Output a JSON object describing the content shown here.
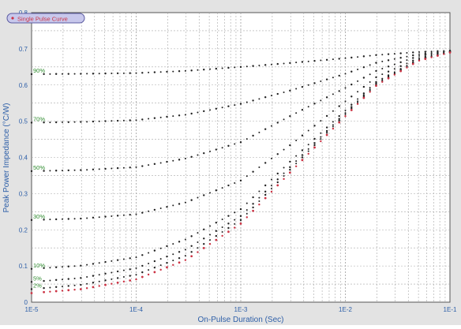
{
  "chart_data": {
    "type": "scatter",
    "title": "",
    "xlabel": "On-Pulse Duration (Sec)",
    "ylabel": "Peak Power Impedance (°C/W)",
    "x_scale": "log",
    "xlim": [
      1e-05,
      0.1
    ],
    "ylim": [
      0,
      0.8
    ],
    "x_ticks": [
      "1E-5",
      "1E-4",
      "1E-3",
      "1E-2",
      "1E-1"
    ],
    "y_ticks": [
      "0",
      "0.1",
      "0.2",
      "0.3",
      "0.4",
      "0.5",
      "0.6",
      "0.7",
      "0.8"
    ],
    "grid": true,
    "legend": {
      "position": "top-left",
      "entries": [
        {
          "label": "Single Pulse Curve",
          "color": "#cc3344",
          "marker": "dot"
        }
      ]
    },
    "colors": {
      "frame_bg": "#e3e3e3",
      "plot_bg": "#ffffff",
      "grid": "#a8a8a8",
      "axis_text": "#2e5fa8",
      "duty_label": "#2e8b2e",
      "black_marker": "#222222",
      "red_marker": "#cc3344",
      "legend_fill": "#c8c8ec",
      "legend_text": "#cc3344"
    },
    "series": [
      {
        "name": "90%",
        "color": "#222222",
        "x": [
          1e-05,
          3e-05,
          0.0001,
          0.0003,
          0.001,
          0.003,
          0.01,
          0.02,
          0.05,
          0.1
        ],
        "y": [
          0.63,
          0.631,
          0.633,
          0.639,
          0.65,
          0.661,
          0.674,
          0.683,
          0.691,
          0.695
        ]
      },
      {
        "name": "70%",
        "color": "#222222",
        "x": [
          1e-05,
          3e-05,
          0.0001,
          0.0003,
          0.001,
          0.003,
          0.01,
          0.02,
          0.05,
          0.1
        ],
        "y": [
          0.496,
          0.498,
          0.503,
          0.518,
          0.548,
          0.585,
          0.631,
          0.662,
          0.685,
          0.694
        ]
      },
      {
        "name": "50%",
        "color": "#222222",
        "x": [
          1e-05,
          3e-05,
          0.0001,
          0.0003,
          0.001,
          0.003,
          0.01,
          0.02,
          0.05,
          0.1
        ],
        "y": [
          0.362,
          0.365,
          0.373,
          0.397,
          0.442,
          0.515,
          0.592,
          0.64,
          0.68,
          0.693
        ]
      },
      {
        "name": "30%",
        "color": "#222222",
        "x": [
          1e-05,
          3e-05,
          0.0001,
          0.0003,
          0.001,
          0.003,
          0.01,
          0.02,
          0.05,
          0.1
        ],
        "y": [
          0.227,
          0.231,
          0.243,
          0.276,
          0.336,
          0.435,
          0.555,
          0.623,
          0.674,
          0.692
        ]
      },
      {
        "name": "10%",
        "color": "#222222",
        "x": [
          1e-05,
          3e-05,
          0.0001,
          0.0003,
          0.001,
          0.003,
          0.01,
          0.02,
          0.05,
          0.1
        ],
        "y": [
          0.092,
          0.101,
          0.124,
          0.174,
          0.257,
          0.39,
          0.53,
          0.61,
          0.67,
          0.691
        ]
      },
      {
        "name": "5%",
        "color": "#222222",
        "x": [
          1e-05,
          3e-05,
          0.0001,
          0.0003,
          0.001,
          0.003,
          0.01,
          0.02,
          0.05,
          0.1
        ],
        "y": [
          0.056,
          0.067,
          0.094,
          0.146,
          0.238,
          0.375,
          0.523,
          0.606,
          0.669,
          0.691
        ]
      },
      {
        "name": "2%",
        "color": "#222222",
        "x": [
          1e-05,
          3e-05,
          0.0001,
          0.0003,
          0.001,
          0.003,
          0.01,
          0.02,
          0.05,
          0.1
        ],
        "y": [
          0.036,
          0.048,
          0.076,
          0.129,
          0.227,
          0.368,
          0.519,
          0.603,
          0.668,
          0.691
        ]
      },
      {
        "name": "Single Pulse Curve",
        "color": "#cc3344",
        "x": [
          1e-05,
          3e-05,
          0.0001,
          0.0003,
          0.001,
          0.003,
          0.01,
          0.02,
          0.05,
          0.1
        ],
        "y": [
          0.025,
          0.036,
          0.063,
          0.117,
          0.217,
          0.36,
          0.514,
          0.6,
          0.667,
          0.69
        ]
      }
    ],
    "series_labels": [
      "90%",
      "70%",
      "50%",
      "30%",
      "10%",
      "5%",
      "2%"
    ]
  }
}
